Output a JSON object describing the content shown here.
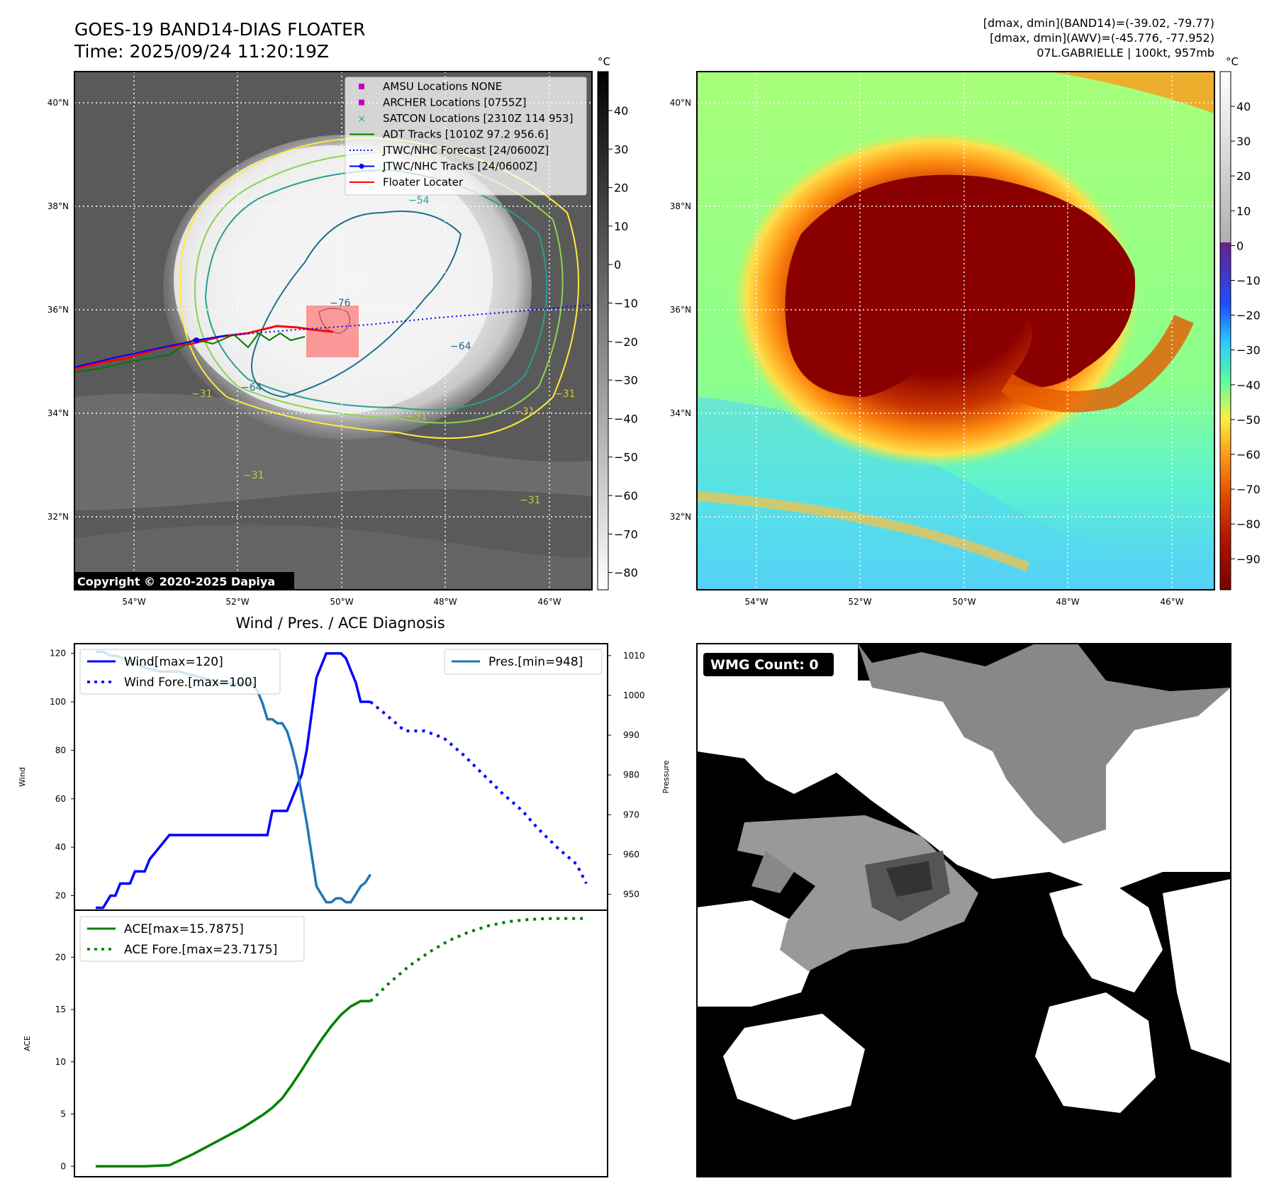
{
  "header": {
    "title": "GOES-19 BAND14-DIAS FLOATER",
    "time": "Time: 2025/09/24 11:20:19Z",
    "info1": "[dmax, dmin](BAND14)=(-39.02, -79.77)",
    "info2": "[dmax, dmin](AWV)=(-45.776, -77.952)",
    "info3": "07L.GABRIELLE | 100kt, 957mb"
  },
  "panel_ir": {
    "colorbar_unit": "°C",
    "colorbar_ticks": [
      "40",
      "30",
      "20",
      "10",
      "0",
      "−10",
      "−20",
      "−30",
      "−40",
      "−50",
      "−60",
      "−70",
      "−80"
    ],
    "lat_labels": [
      "40°N",
      "38°N",
      "36°N",
      "34°N",
      "32°N"
    ],
    "lon_labels": [
      "54°W",
      "52°W",
      "50°W",
      "48°W",
      "46°W"
    ],
    "legend": [
      {
        "label": "AMSU Locations NONE",
        "color": "#c000c0",
        "kind": "square"
      },
      {
        "label": "ARCHER Locations [0755Z]",
        "color": "#c000c0",
        "kind": "square"
      },
      {
        "label": "SATCON Locations [2310Z 114 953]",
        "color": "#20b0b0",
        "kind": "x"
      },
      {
        "label": "ADT Tracks [1010Z 97.2 956.6]",
        "color": "#007a00",
        "kind": "line"
      },
      {
        "label": "JTWC/NHC Forecast [24/0600Z]",
        "color": "#0000ff",
        "kind": "dotted"
      },
      {
        "label": "JTWC/NHC Tracks [24/0600Z]",
        "color": "#0000ff",
        "kind": "marker"
      },
      {
        "label": "Floater Locater",
        "color": "#ff0000",
        "kind": "line"
      }
    ],
    "contour_labels": [
      "−76",
      "−64",
      "−64",
      "−54",
      "−31",
      "−31",
      "−31",
      "−31",
      "−31",
      "−31"
    ],
    "copyright": "Copyright © 2020-2025 Dapiya"
  },
  "panel_awv": {
    "colorbar_unit": "°C",
    "colorbar_ticks": [
      "40",
      "30",
      "20",
      "10",
      "0",
      "−10",
      "−20",
      "−30",
      "−40",
      "−50",
      "−60",
      "−70",
      "−80",
      "−90"
    ],
    "lat_labels": [
      "40°N",
      "38°N",
      "36°N",
      "34°N",
      "32°N"
    ],
    "lon_labels": [
      "54°W",
      "52°W",
      "50°W",
      "48°W",
      "46°W"
    ]
  },
  "chart_data": [
    {
      "type": "line",
      "title": "Wind / Pres. / ACE Diagnosis",
      "ylabel": "Wind",
      "y2label": "Pressure",
      "ylim": [
        14,
        124
      ],
      "y2lim": [
        946,
        1013
      ],
      "yticks": [
        20,
        40,
        60,
        80,
        100,
        120
      ],
      "y2ticks": [
        950,
        960,
        970,
        980,
        990,
        1000,
        1010
      ],
      "x": [
        0,
        1,
        2,
        3,
        4,
        5,
        6,
        7,
        8,
        9,
        10,
        11,
        12,
        13,
        14,
        15,
        16,
        17,
        18,
        19,
        20,
        21,
        22,
        23,
        24,
        25,
        26,
        27,
        28,
        29,
        30,
        31,
        32,
        33,
        34,
        35,
        36,
        37,
        38,
        39,
        40,
        41,
        42,
        43,
        44,
        45,
        46,
        47,
        48,
        49,
        50,
        51,
        52,
        53,
        54,
        55,
        56,
        57,
        58,
        59,
        60,
        61,
        62,
        63,
        64,
        65,
        66,
        67,
        68,
        69,
        70,
        71,
        72,
        73,
        74,
        75,
        76,
        77,
        78,
        79,
        80,
        81,
        82,
        83,
        84,
        85,
        86,
        87,
        88,
        89,
        90,
        91,
        92,
        93,
        94,
        95,
        96,
        97,
        98,
        99,
        100
      ],
      "series": [
        {
          "name": "Wind[max=120]",
          "color": "#0000ff",
          "style": "solid",
          "axis": "left",
          "x": [
            0,
            1.5,
            3,
            4,
            5,
            6,
            7,
            8,
            10,
            11,
            13,
            15,
            17,
            18,
            19,
            20,
            21,
            22,
            23,
            24,
            25,
            26,
            27,
            28,
            29,
            30,
            31,
            32,
            33,
            34,
            35,
            36,
            37,
            38,
            39,
            40,
            41,
            42,
            43,
            44,
            45,
            46,
            47,
            48,
            49,
            50,
            51,
            52,
            53,
            54,
            55,
            56
          ],
          "values": [
            15,
            15,
            20,
            20,
            25,
            25,
            25,
            30,
            30,
            35,
            40,
            45,
            45,
            45,
            45,
            45,
            45,
            45,
            45,
            45,
            45,
            45,
            45,
            45,
            45,
            45,
            45,
            45,
            45,
            45,
            45,
            55,
            55,
            55,
            55,
            60,
            65,
            70,
            80,
            95,
            110,
            115,
            120,
            120,
            120,
            120,
            118,
            113,
            108,
            100,
            100,
            100
          ]
        },
        {
          "name": "Wind Fore.[max=100]",
          "color": "#0000ff",
          "style": "dotted",
          "axis": "left",
          "x": [
            56,
            59,
            63,
            67,
            71,
            75,
            79,
            83,
            87,
            90,
            94,
            98,
            100
          ],
          "values": [
            100,
            95,
            88,
            88,
            85,
            78,
            70,
            62,
            55,
            48,
            40,
            33,
            25
          ]
        },
        {
          "name": "Pres.[min=948]",
          "color": "#1f77b4",
          "style": "solid",
          "axis": "right",
          "x": [
            0,
            1.5,
            3,
            4,
            6,
            10,
            13,
            17,
            20,
            23,
            25,
            27,
            28,
            29,
            30,
            31,
            32,
            33,
            34,
            35,
            36,
            37,
            38,
            39,
            40,
            41,
            42,
            43,
            44,
            45,
            46,
            47,
            48,
            49,
            50,
            51,
            52,
            53,
            54,
            55,
            56
          ],
          "values": [
            1011,
            1011,
            1010,
            1010,
            1009,
            1007,
            1006,
            1006,
            1005,
            1004,
            1003,
            1003,
            1003,
            1003,
            1003,
            1003,
            1003,
            1001,
            998,
            994,
            994,
            993,
            993,
            991,
            987,
            982,
            975,
            968,
            960,
            952,
            950,
            948,
            948,
            949,
            949,
            948,
            948,
            950,
            952,
            953,
            955
          ]
        }
      ]
    },
    {
      "type": "line",
      "ylabel": "ACE",
      "ylim": [
        -1,
        24.5
      ],
      "yticks": [
        0,
        5,
        10,
        15,
        20
      ],
      "series": [
        {
          "name": "ACE[max=15.7875]",
          "color": "#008000",
          "style": "solid",
          "x": [
            0,
            5,
            10,
            15,
            20,
            22,
            24,
            26,
            28,
            30,
            32,
            34,
            36,
            38,
            40,
            42,
            44,
            46,
            48,
            50,
            52,
            54,
            56
          ],
          "values": [
            0,
            0,
            0,
            0.1,
            1.2,
            1.7,
            2.2,
            2.7,
            3.2,
            3.7,
            4.3,
            4.9,
            5.6,
            6.5,
            7.8,
            9.2,
            10.7,
            12.1,
            13.4,
            14.5,
            15.3,
            15.8,
            15.8
          ]
        },
        {
          "name": "ACE Fore.[max=23.7175]",
          "color": "#008000",
          "style": "dotted",
          "x": [
            56,
            60,
            64,
            68,
            72,
            76,
            80,
            84,
            88,
            92,
            96,
            100
          ],
          "values": [
            15.8,
            17.6,
            19.2,
            20.5,
            21.6,
            22.4,
            23.0,
            23.4,
            23.6,
            23.7,
            23.7,
            23.7
          ]
        }
      ]
    }
  ],
  "panel_wmg": {
    "label": "WMG Count: 0"
  }
}
